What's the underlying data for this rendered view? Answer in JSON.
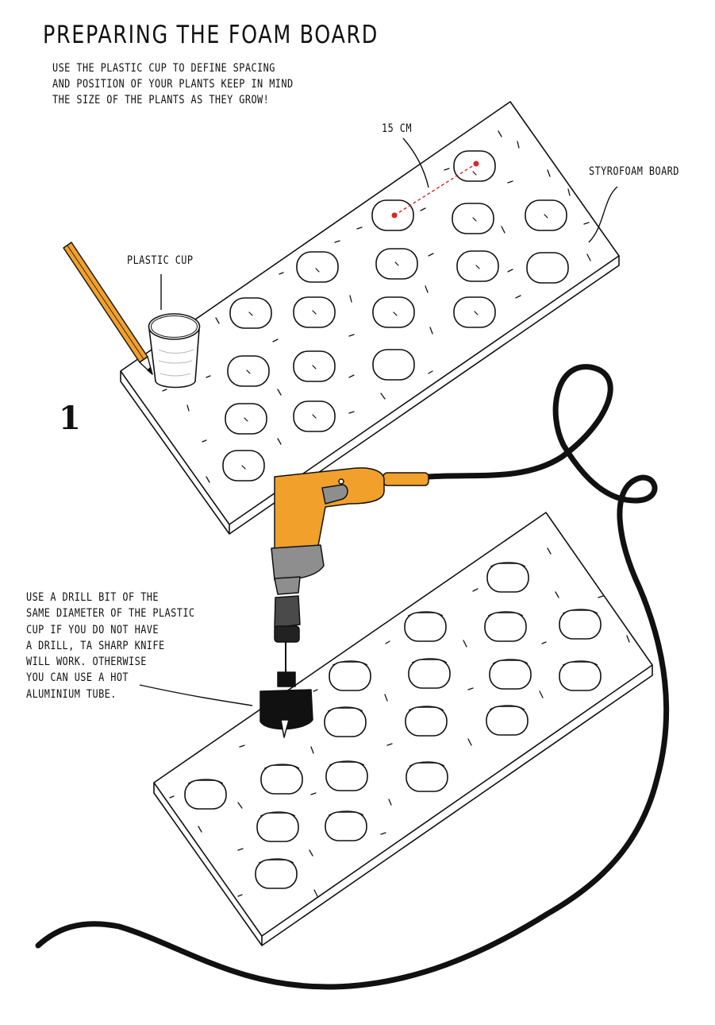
{
  "title": "PREPARING THE FOAM BOARD",
  "intro_lines": [
    "USE THE PLASTIC CUP TO DEFINE SPACING",
    "AND POSITION OF YOUR PLANTS KEEP IN MIND",
    "THE SIZE OF THE PLANTS AS THEY GROW!"
  ],
  "labels": {
    "spacing": "15 CM",
    "board": "STYROFOAM BOARD",
    "cup": "PLASTIC CUP"
  },
  "step_number": "1",
  "drill_lines": [
    "USE A DRILL BIT OF THE",
    "SAME DIAMETER OF THE PLASTIC",
    "CUP IF YOU DO NOT HAVE",
    "A DRILL, TA SHARP KNIFE",
    "WILL WORK. OTHERWISE",
    "YOU CAN USE A HOT",
    "ALUMINIUM TUBE."
  ],
  "colors": {
    "drill_orange": "#F0A02B",
    "drill_grey": "#8E8E8E",
    "marker_red": "#D62828",
    "pencil_yellow": "#F0A02B"
  }
}
